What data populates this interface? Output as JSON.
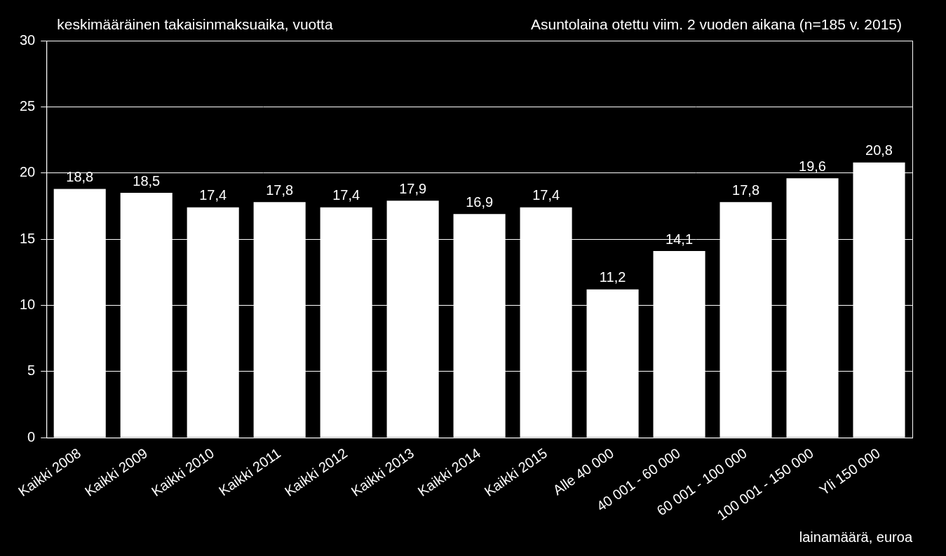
{
  "chart_data": {
    "type": "bar",
    "title": "keskimääräinen takaisinmaksuaika, vuotta",
    "subtitle": "Asuntolaina otettu viim. 2 vuoden aikana (n=185 v. 2015)",
    "xlabel": "lainamäärä, euroa",
    "categories": [
      "Kaikki 2008",
      "Kaikki 2009",
      "Kaikki 2010",
      "Kaikki 2011",
      "Kaikki 2012",
      "Kaikki 2013",
      "Kaikki 2014",
      "Kaikki 2015",
      "Alle 40 000",
      "40 001 - 60 000",
      "60 001 - 100 000",
      "100 001 - 150 000",
      "Yli 150 000"
    ],
    "values": [
      18.8,
      18.5,
      17.4,
      17.8,
      17.4,
      17.9,
      16.9,
      17.4,
      11.2,
      14.1,
      17.8,
      19.6,
      20.8
    ],
    "value_labels": [
      "18,8",
      "18,5",
      "17,4",
      "17,8",
      "17,4",
      "17,9",
      "16,9",
      "17,4",
      "11,2",
      "14,1",
      "17,8",
      "19,6",
      "20,8"
    ],
    "color": "#ffffff",
    "ylim": [
      0,
      30
    ],
    "yticks": [
      0,
      5,
      10,
      15,
      20,
      25,
      30
    ],
    "grid": true,
    "data_labels": true
  }
}
